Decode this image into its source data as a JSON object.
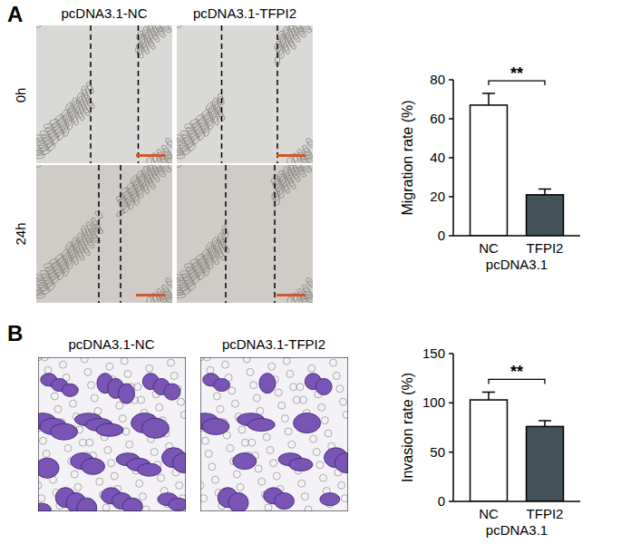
{
  "chart_data": [
    {
      "type": "bar",
      "panel_label": "A",
      "image_titles": [
        "pcDNA3.1-NC",
        "pcDNA3.1-TFPI2"
      ],
      "image_rows": [
        "0h",
        "24h"
      ],
      "categories": [
        "NC",
        "TFPI2"
      ],
      "x_label": "pcDNA3.1",
      "y_label": "Migration rate (%)",
      "values": [
        67,
        21
      ],
      "errors": [
        6,
        3
      ],
      "colors": [
        "#ffffff",
        "#44525a"
      ],
      "ylim": [
        0,
        80
      ],
      "yticks": [
        0,
        20,
        40,
        60,
        80
      ],
      "annotation": "**"
    },
    {
      "type": "bar",
      "panel_label": "B",
      "image_titles": [
        "pcDNA3.1-NC",
        "pcDNA3.1-TFPI2"
      ],
      "categories": [
        "NC",
        "TFPI2"
      ],
      "x_label": "pcDNA3.1",
      "y_label": "Invasion rate (%)",
      "values": [
        103,
        76
      ],
      "errors": [
        8,
        6
      ],
      "colors": [
        "#ffffff",
        "#44525a"
      ],
      "ylim": [
        0,
        150
      ],
      "yticks": [
        0,
        50,
        100,
        150
      ],
      "annotation": "**"
    }
  ]
}
